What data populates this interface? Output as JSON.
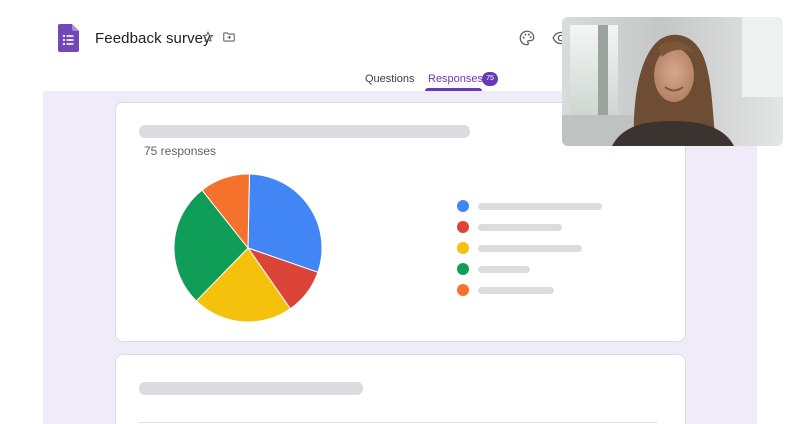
{
  "header": {
    "title": "Feedback survey",
    "icons": [
      "forms-logo-icon",
      "star-icon",
      "folder-move-icon",
      "palette-icon",
      "eye-icon"
    ]
  },
  "tabs": [
    {
      "label": "Questions"
    },
    {
      "label": "Responses",
      "badge": "75",
      "active": true
    }
  ],
  "summary": {
    "response_count_text": "75 responses"
  },
  "chart_data": {
    "type": "pie",
    "values": [
      30,
      10,
      22,
      27,
      11
    ],
    "colors": [
      "#4285f4",
      "#db4437",
      "#f4c20d",
      "#0f9d58",
      "#f4722b"
    ],
    "legend_entries": 5
  },
  "colors": {
    "accent": "#673ab7",
    "canvas_bg": "#f0ebf8",
    "placeholder": "#dadce0"
  }
}
